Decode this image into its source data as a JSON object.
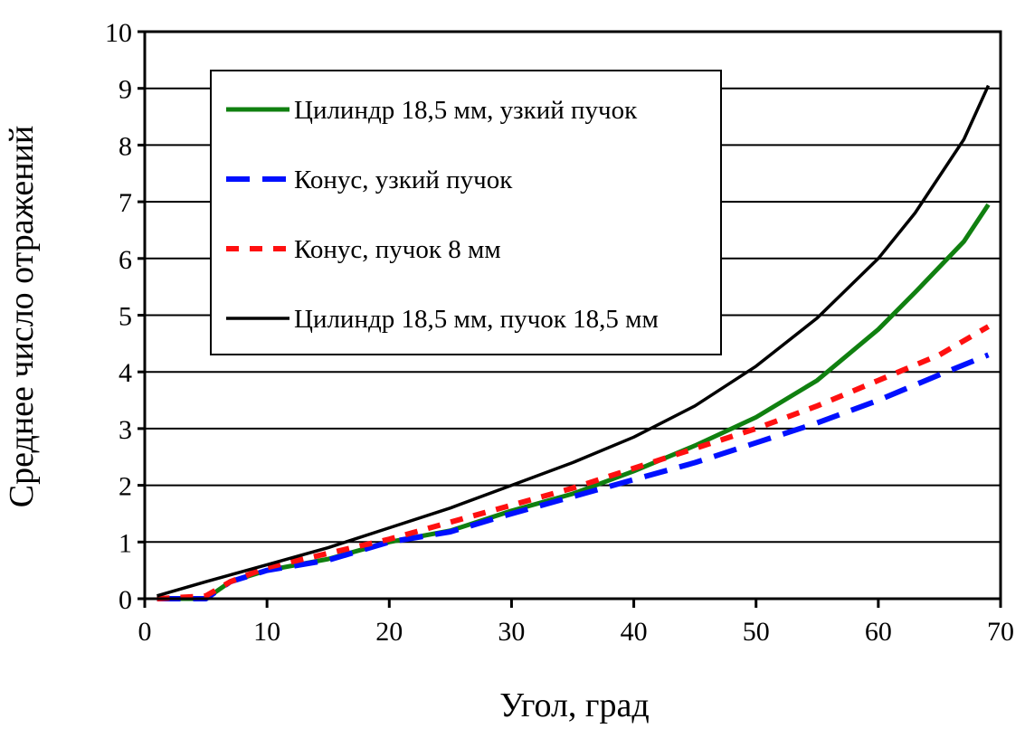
{
  "chart_data": {
    "type": "line",
    "title": "",
    "xlabel": "Угол, град",
    "ylabel": "Среднее число отражений",
    "xlim": [
      0,
      70
    ],
    "ylim": [
      0,
      10
    ],
    "xticks": [
      0,
      10,
      20,
      30,
      40,
      50,
      60,
      70
    ],
    "yticks": [
      0,
      1,
      2,
      3,
      4,
      5,
      6,
      7,
      8,
      9,
      10
    ],
    "grid": "horizontal",
    "legend_position": "top-left",
    "series": [
      {
        "name": "Цилиндр 18,5 мм, узкий пучок",
        "color": "#108010",
        "style": "solid",
        "x": [
          1,
          5,
          7,
          10,
          15,
          20,
          25,
          30,
          35,
          40,
          45,
          50,
          55,
          60,
          63,
          67,
          69
        ],
        "y": [
          0,
          0,
          0.3,
          0.5,
          0.7,
          1.0,
          1.2,
          1.55,
          1.85,
          2.25,
          2.7,
          3.2,
          3.85,
          4.75,
          5.4,
          6.3,
          6.95
        ]
      },
      {
        "name": "Конус, узкий пучок",
        "color": "#0010ff",
        "style": "longdash",
        "x": [
          1,
          5,
          7,
          10,
          15,
          20,
          25,
          30,
          35,
          40,
          45,
          50,
          55,
          60,
          65,
          69
        ],
        "y": [
          0,
          0,
          0.3,
          0.5,
          0.68,
          1.0,
          1.18,
          1.5,
          1.8,
          2.1,
          2.4,
          2.75,
          3.1,
          3.5,
          3.95,
          4.3
        ]
      },
      {
        "name": "Конус,  пучок 8 мм",
        "color": "#ff1010",
        "style": "shortdash",
        "x": [
          1,
          5,
          7,
          10,
          15,
          20,
          25,
          30,
          35,
          40,
          45,
          50,
          55,
          60,
          65,
          69
        ],
        "y": [
          0,
          0.05,
          0.3,
          0.55,
          0.8,
          1.05,
          1.35,
          1.65,
          1.95,
          2.3,
          2.65,
          3.0,
          3.4,
          3.85,
          4.3,
          4.8
        ]
      },
      {
        "name": "Цилиндр 18,5 мм, пучок 18,5 мм",
        "color": "#000000",
        "style": "solid",
        "x": [
          1,
          5,
          10,
          15,
          20,
          25,
          30,
          35,
          40,
          45,
          50,
          55,
          60,
          63,
          67,
          69
        ],
        "y": [
          0.05,
          0.3,
          0.6,
          0.9,
          1.25,
          1.6,
          2.0,
          2.4,
          2.85,
          3.4,
          4.1,
          4.95,
          6.0,
          6.8,
          8.1,
          9.05
        ]
      }
    ]
  }
}
